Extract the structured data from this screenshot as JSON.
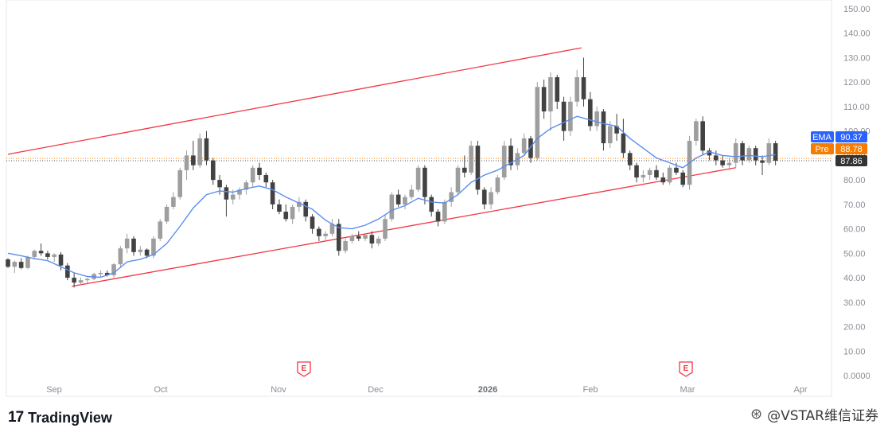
{
  "chart_data": {
    "type": "candlestick",
    "y_ticks": [
      "150.00",
      "140.00",
      "130.00",
      "120.00",
      "110.00",
      "100.00",
      "90.00",
      "80.00",
      "70.00",
      "60.00",
      "50.00",
      "40.00",
      "30.00",
      "20.00",
      "10.00",
      "0.0000"
    ],
    "ylim": [
      0,
      150
    ],
    "x_labels": [
      "Sep",
      "Oct",
      "Nov",
      "Dec",
      "2026",
      "Feb",
      "Mar",
      "Apr"
    ],
    "x_bold": "2026",
    "earnings_marker": "E",
    "indicators": {
      "ema": {
        "label": "EMA",
        "value": "90.37",
        "color": "#2962ff"
      },
      "pre": {
        "label": "Pre",
        "value": "88.78",
        "color": "#f57c00"
      },
      "last": {
        "value": "87.86",
        "color": "#333333"
      }
    },
    "channel_color": "#f23645",
    "ema_color": "#5b8def",
    "upper_channel": [
      [
        0,
        90.5
      ],
      [
        260,
        134
      ]
    ],
    "lower_channel": [
      [
        29,
        36.5
      ],
      [
        330,
        85
      ]
    ],
    "candles": [
      [
        0,
        47.5,
        48,
        44,
        44.5
      ],
      [
        3,
        44.5,
        47,
        42,
        46.5
      ],
      [
        6,
        46.5,
        48,
        43.5,
        44
      ],
      [
        9,
        44,
        49,
        43.5,
        48.5
      ],
      [
        12,
        48.5,
        51.5,
        47.5,
        51
      ],
      [
        15,
        51,
        54,
        49,
        50
      ],
      [
        18,
        50,
        51,
        47.5,
        48.5
      ],
      [
        21,
        48.5,
        50,
        46.5,
        49.5
      ],
      [
        24,
        49.5,
        50.5,
        43,
        45
      ],
      [
        27,
        45,
        46,
        39,
        40
      ],
      [
        30,
        40,
        42,
        36,
        38
      ],
      [
        33,
        38,
        40,
        37,
        39
      ],
      [
        36,
        39,
        40,
        38,
        39.5
      ],
      [
        39,
        39.5,
        42,
        39,
        41.5
      ],
      [
        42,
        41.5,
        43,
        40,
        42
      ],
      [
        45,
        42,
        43,
        40.5,
        41
      ],
      [
        48,
        41,
        46,
        40,
        45.5
      ],
      [
        51,
        45.5,
        53,
        44,
        52
      ],
      [
        54,
        52,
        58,
        50,
        56
      ],
      [
        57,
        56,
        57,
        49,
        50.5
      ],
      [
        60,
        50.5,
        53,
        49,
        51.5
      ],
      [
        63,
        51.5,
        52,
        48,
        49
      ],
      [
        66,
        49,
        57,
        48,
        56
      ],
      [
        69,
        56,
        64,
        55,
        63
      ],
      [
        72,
        63,
        70,
        62,
        69
      ],
      [
        75,
        69,
        75,
        68,
        73
      ],
      [
        78,
        73,
        85,
        72,
        84
      ],
      [
        81,
        84,
        92,
        80,
        90
      ],
      [
        84,
        90,
        96,
        84,
        86
      ],
      [
        87,
        86,
        99,
        85,
        97
      ],
      [
        90,
        97,
        100,
        86,
        88
      ],
      [
        93,
        88,
        89,
        78,
        80
      ],
      [
        96,
        80,
        82,
        74,
        77
      ],
      [
        99,
        77,
        78,
        65,
        72
      ],
      [
        102,
        72,
        76,
        70,
        74
      ],
      [
        105,
        74,
        77,
        72,
        76
      ],
      [
        108,
        76,
        80,
        74,
        79
      ],
      [
        111,
        79,
        86,
        77,
        85
      ],
      [
        114,
        85,
        87,
        80,
        82
      ],
      [
        117,
        82,
        83,
        77,
        79
      ],
      [
        120,
        79,
        80,
        68,
        70
      ],
      [
        123,
        70,
        72,
        66,
        67
      ],
      [
        126,
        67,
        70,
        63,
        64
      ],
      [
        129,
        64,
        70,
        62,
        69
      ],
      [
        132,
        69,
        73,
        67,
        71
      ],
      [
        135,
        71,
        72,
        63,
        65
      ],
      [
        138,
        65,
        66,
        58,
        60
      ],
      [
        141,
        60,
        61,
        55,
        57
      ],
      [
        144,
        57,
        59,
        55,
        58
      ],
      [
        147,
        58,
        64,
        57,
        62
      ],
      [
        150,
        62,
        64,
        49,
        51
      ],
      [
        153,
        51,
        56,
        50,
        55
      ],
      [
        156,
        55,
        58,
        54,
        57
      ],
      [
        159,
        57,
        59,
        55,
        56
      ],
      [
        162,
        56,
        58,
        55,
        57.5
      ],
      [
        165,
        57.5,
        59,
        52,
        54
      ],
      [
        168,
        54,
        57,
        53,
        56
      ],
      [
        171,
        56,
        66,
        55,
        64
      ],
      [
        174,
        64,
        75,
        63,
        74
      ],
      [
        177,
        74,
        76,
        69,
        70
      ],
      [
        180,
        70,
        74,
        68,
        73
      ],
      [
        183,
        73,
        78,
        72,
        76
      ],
      [
        186,
        76,
        86,
        75,
        85
      ],
      [
        189,
        85,
        86,
        70,
        73
      ],
      [
        192,
        73,
        74,
        65,
        67
      ],
      [
        195,
        67,
        68,
        61,
        63
      ],
      [
        198,
        63,
        72,
        62,
        71
      ],
      [
        201,
        71,
        77,
        69,
        75
      ],
      [
        204,
        75,
        86,
        74,
        85
      ],
      [
        207,
        85,
        90,
        81,
        83
      ],
      [
        210,
        83,
        96,
        82,
        94
      ],
      [
        213,
        94,
        96,
        74,
        76
      ],
      [
        216,
        76,
        77,
        68,
        70
      ],
      [
        219,
        70,
        77,
        68,
        75
      ],
      [
        222,
        75,
        82,
        74,
        81
      ],
      [
        225,
        81,
        96,
        80,
        94
      ],
      [
        228,
        94,
        97,
        84,
        86
      ],
      [
        231,
        86,
        93,
        84,
        91
      ],
      [
        234,
        91,
        99,
        90,
        97
      ],
      [
        237,
        97,
        98,
        87,
        89
      ],
      [
        240,
        89,
        120,
        88,
        118
      ],
      [
        243,
        118,
        121,
        105,
        108
      ],
      [
        246,
        108,
        124,
        100,
        122
      ],
      [
        249,
        122,
        123,
        109,
        112
      ],
      [
        252,
        112,
        114,
        96,
        100
      ],
      [
        255,
        100,
        114,
        98,
        112
      ],
      [
        258,
        112,
        125,
        110,
        122
      ],
      [
        261,
        122,
        130,
        110,
        113
      ],
      [
        264,
        113,
        116,
        100,
        102
      ],
      [
        267,
        102,
        110,
        100,
        108
      ],
      [
        270,
        108,
        109,
        92,
        95
      ],
      [
        273,
        95,
        104,
        93,
        102
      ],
      [
        276,
        102,
        107,
        96,
        99
      ],
      [
        279,
        99,
        105,
        89,
        91
      ],
      [
        282,
        91,
        92,
        84,
        86
      ],
      [
        285,
        86,
        87,
        79,
        81
      ],
      [
        288,
        81,
        84,
        79,
        82
      ],
      [
        291,
        82,
        85,
        80,
        84
      ],
      [
        294,
        84,
        86,
        80,
        81
      ],
      [
        297,
        81,
        83,
        78,
        79
      ],
      [
        300,
        79,
        86,
        78,
        85
      ],
      [
        303,
        85,
        87,
        82,
        83
      ],
      [
        306,
        83,
        84,
        77,
        78
      ],
      [
        309,
        78,
        98,
        76,
        96
      ],
      [
        312,
        96,
        105,
        94,
        104
      ],
      [
        315,
        104,
        106,
        90,
        92
      ],
      [
        318,
        92,
        93,
        88,
        90
      ],
      [
        321,
        90,
        92,
        86,
        88
      ],
      [
        324,
        88,
        90,
        85,
        86
      ],
      [
        327,
        86,
        89,
        84,
        87
      ],
      [
        330,
        87,
        97,
        85,
        95
      ],
      [
        333,
        95,
        96,
        86,
        88
      ],
      [
        336,
        88,
        94,
        87,
        93
      ],
      [
        339,
        93,
        94,
        86,
        88
      ],
      [
        342,
        88,
        90,
        82,
        87
      ],
      [
        345,
        87,
        97,
        86,
        95
      ],
      [
        348,
        95,
        96,
        86,
        87.86
      ]
    ],
    "ema_points": [
      [
        0,
        50
      ],
      [
        6,
        49
      ],
      [
        12,
        47.8
      ],
      [
        18,
        47
      ],
      [
        24,
        44.5
      ],
      [
        30,
        42
      ],
      [
        36,
        40.5
      ],
      [
        42,
        40.2
      ],
      [
        48,
        42
      ],
      [
        54,
        46.5
      ],
      [
        60,
        47.5
      ],
      [
        66,
        49.5
      ],
      [
        72,
        54
      ],
      [
        78,
        61
      ],
      [
        84,
        68.5
      ],
      [
        90,
        74
      ],
      [
        96,
        75.5
      ],
      [
        102,
        75
      ],
      [
        108,
        76.5
      ],
      [
        114,
        77.5
      ],
      [
        120,
        76
      ],
      [
        126,
        73
      ],
      [
        132,
        70.5
      ],
      [
        138,
        68
      ],
      [
        144,
        63.5
      ],
      [
        150,
        60.5
      ],
      [
        156,
        60
      ],
      [
        162,
        61.5
      ],
      [
        168,
        64
      ],
      [
        174,
        67.5
      ],
      [
        180,
        69.5
      ],
      [
        186,
        72.5
      ],
      [
        192,
        71
      ],
      [
        198,
        70.5
      ],
      [
        204,
        74
      ],
      [
        210,
        79
      ],
      [
        216,
        82
      ],
      [
        222,
        84
      ],
      [
        228,
        87
      ],
      [
        234,
        90
      ],
      [
        240,
        97
      ],
      [
        246,
        101
      ],
      [
        252,
        103.5
      ],
      [
        258,
        106
      ],
      [
        264,
        104.5
      ],
      [
        270,
        103
      ],
      [
        276,
        102
      ],
      [
        282,
        97
      ],
      [
        288,
        93
      ],
      [
        294,
        89
      ],
      [
        300,
        87
      ],
      [
        306,
        85
      ],
      [
        312,
        89
      ],
      [
        318,
        91.5
      ],
      [
        324,
        90
      ],
      [
        330,
        89.5
      ],
      [
        336,
        90
      ],
      [
        342,
        89.5
      ],
      [
        348,
        90.37
      ]
    ]
  }
}
